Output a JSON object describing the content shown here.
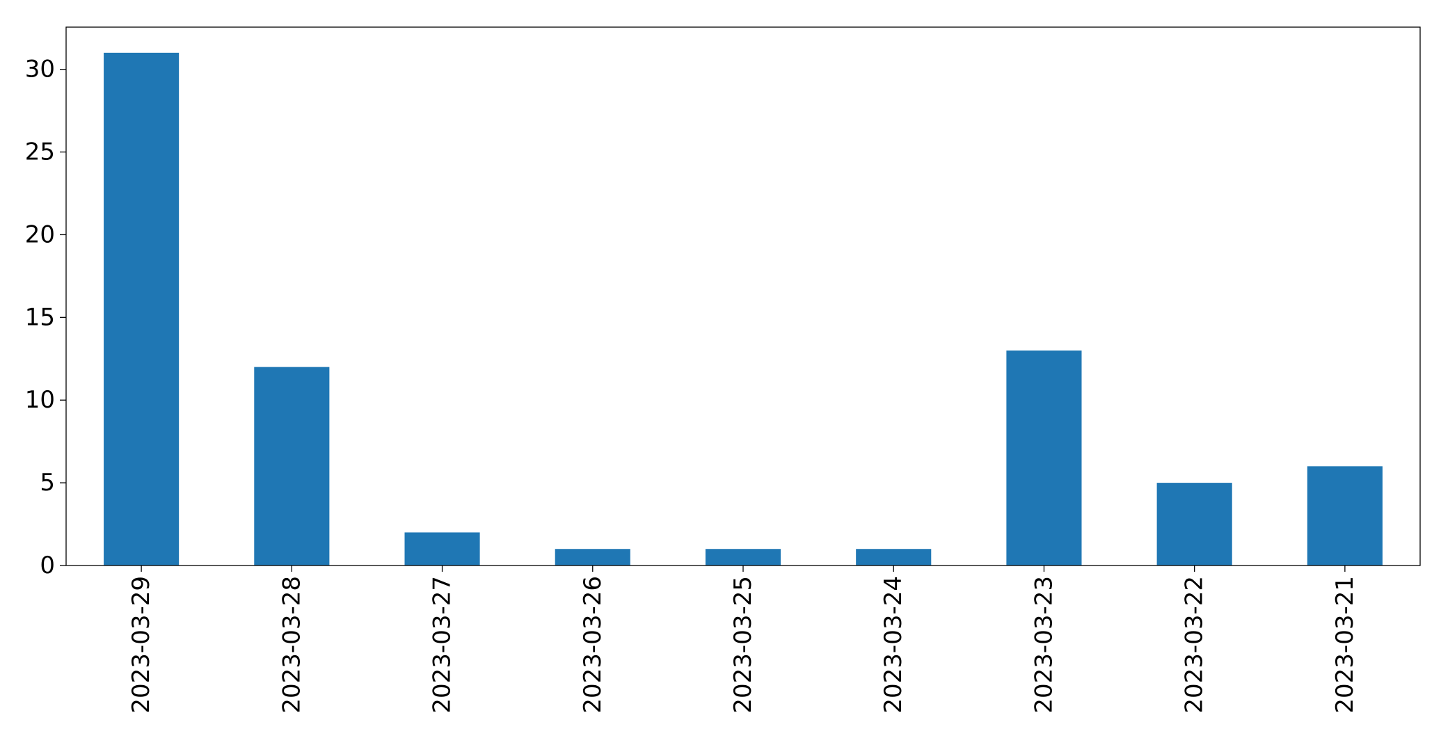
{
  "chart_data": {
    "type": "bar",
    "title": "",
    "xlabel": "",
    "ylabel": "",
    "categories": [
      "2023-03-29",
      "2023-03-28",
      "2023-03-27",
      "2023-03-26",
      "2023-03-25",
      "2023-03-24",
      "2023-03-23",
      "2023-03-22",
      "2023-03-21"
    ],
    "values": [
      31,
      12,
      2,
      1,
      1,
      1,
      13,
      5,
      6
    ],
    "ylim": [
      0,
      32.55
    ],
    "yticks": [
      0,
      5,
      10,
      15,
      20,
      25,
      30
    ],
    "grid": false,
    "legend": "none",
    "bar_color": "#1f77b4",
    "xtick_rotation": 90
  }
}
